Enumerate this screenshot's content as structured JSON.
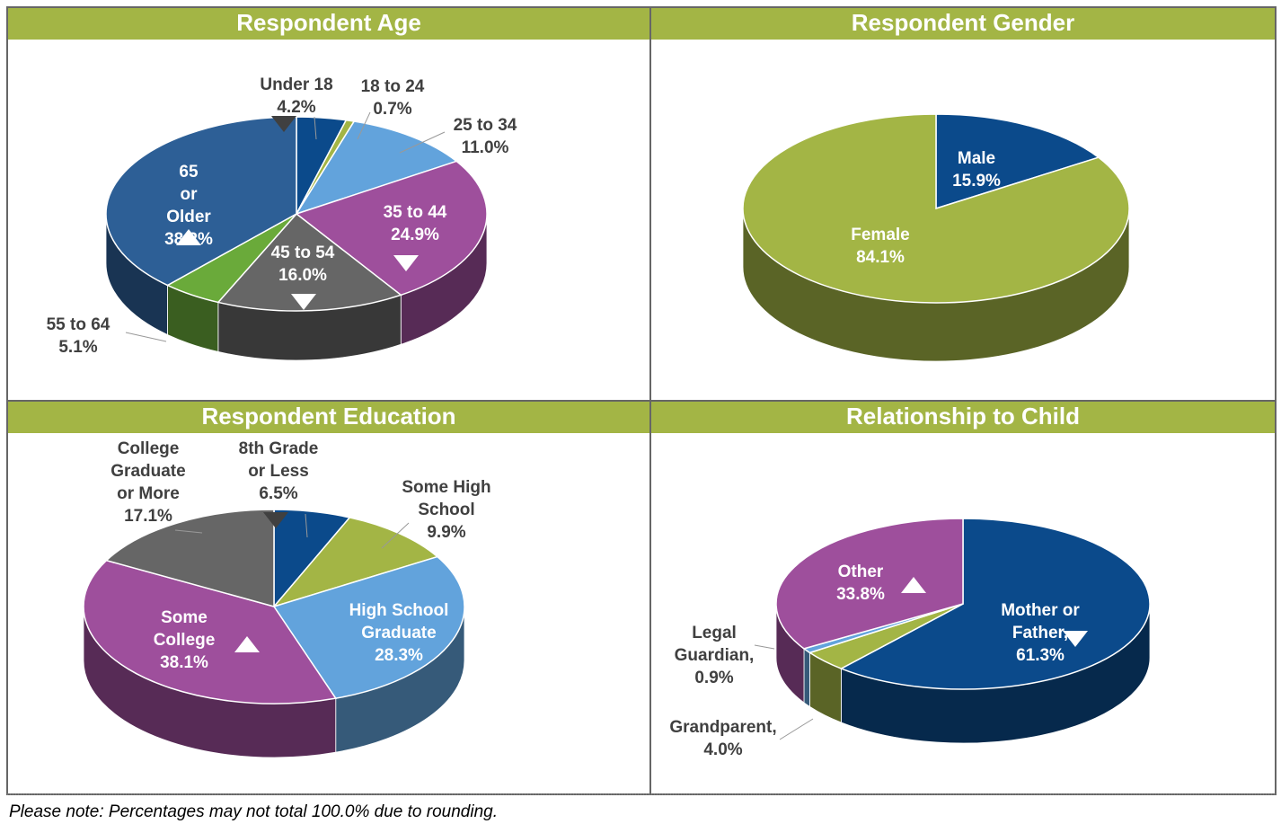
{
  "chart_data": [
    {
      "type": "pie",
      "title": "Respondent Age",
      "categories": [
        "Under 18",
        "18 to 24",
        "25 to 34",
        "35 to 44",
        "45 to 54",
        "55 to 64",
        "65 or Older"
      ],
      "values": [
        4.2,
        0.7,
        11.0,
        24.9,
        16.0,
        5.1,
        38.2
      ],
      "value_labels": [
        "4.2%",
        "0.7%",
        "11.0%",
        "24.9%",
        "16.0%",
        "5.1%",
        "38.2%"
      ],
      "colors": [
        "#0b4a8b",
        "#a3b545",
        "#62a3dc",
        "#9e4f9c",
        "#666666",
        "#6aaa3a",
        "#2d5f96"
      ],
      "markers": [
        "down",
        null,
        null,
        "down",
        "down",
        null,
        "up"
      ]
    },
    {
      "type": "pie",
      "title": "Respondent Gender",
      "categories": [
        "Male",
        "Female"
      ],
      "values": [
        15.9,
        84.1
      ],
      "value_labels": [
        "15.9%",
        "84.1%"
      ],
      "colors": [
        "#0b4a8b",
        "#a3b545"
      ],
      "markers": [
        null,
        null
      ]
    },
    {
      "type": "pie",
      "title": "Respondent Education",
      "categories": [
        "8th Grade or Less",
        "Some High School",
        "High School Graduate",
        "Some College",
        "College Graduate or More"
      ],
      "values": [
        6.5,
        9.9,
        28.3,
        38.1,
        17.1
      ],
      "value_labels": [
        "6.5%",
        "9.9%",
        "28.3%",
        "38.1%",
        "17.1%"
      ],
      "colors": [
        "#0b4a8b",
        "#a3b545",
        "#62a3dc",
        "#9e4f9c",
        "#666666"
      ],
      "markers": [
        "down",
        null,
        null,
        "up",
        null
      ]
    },
    {
      "type": "pie",
      "title": "Relationship to Child",
      "categories": [
        "Mother or Father,",
        "Grandparent,",
        "Legal Guardian,",
        "Other"
      ],
      "values": [
        61.3,
        4.0,
        0.9,
        33.8
      ],
      "value_labels": [
        "61.3%",
        "4.0%",
        "0.9%",
        "33.8%"
      ],
      "colors": [
        "#0b4a8b",
        "#a3b545",
        "#62a3dc",
        "#9e4f9c"
      ],
      "markers": [
        "down",
        null,
        null,
        "up"
      ]
    }
  ],
  "note": "Please note:  Percentages may not total 100.0% due to rounding."
}
